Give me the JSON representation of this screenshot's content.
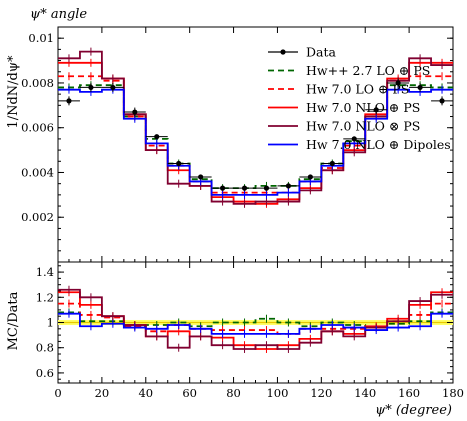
{
  "chart_data": {
    "type": "line",
    "title": "ψ* angle",
    "xlabel": "ψ* (degree)",
    "ylabel_main": "1/NdN/dψ*",
    "ylabel_ratio": "MC/Data",
    "x_range": [
      0,
      180
    ],
    "main_ylim": [
      0.0,
      0.0105
    ],
    "ratio_ylim": [
      0.52,
      1.48
    ],
    "x_ticks": [
      0,
      20,
      40,
      60,
      80,
      100,
      120,
      140,
      160,
      180
    ],
    "main_y_ticks": [
      0.002,
      0.004,
      0.006,
      0.008,
      0.01
    ],
    "main_y_tick_labels": [
      "0.002",
      "0.004",
      "0.006",
      "0.008",
      "0.01"
    ],
    "ratio_y_ticks": [
      0.6,
      0.8,
      1.0,
      1.2,
      1.4
    ],
    "ratio_y_tick_labels": [
      "0.6",
      "0.8",
      "1",
      "1.2",
      "1.4"
    ],
    "legend_position": "top-right",
    "bin_edges": [
      0,
      10,
      20,
      30,
      40,
      50,
      60,
      70,
      80,
      90,
      100,
      110,
      120,
      130,
      140,
      150,
      160,
      170,
      180
    ],
    "data": {
      "name": "Data",
      "color": "#000000",
      "values": [
        0.0072,
        0.0078,
        0.0078,
        0.0067,
        0.0056,
        0.0044,
        0.0038,
        0.0033,
        0.0033,
        0.0033,
        0.0034,
        0.0038,
        0.0044,
        0.0055,
        0.0068,
        0.008,
        0.0078,
        0.0072
      ],
      "errors": [
        0.0002,
        0.0002,
        0.0002,
        0.0002,
        0.0001,
        0.0001,
        0.0001,
        0.0001,
        0.0001,
        0.0001,
        0.0001,
        0.0001,
        0.0001,
        0.0001,
        0.0002,
        0.0002,
        0.0002,
        0.0002
      ]
    },
    "series": [
      {
        "name": "Hw++ 2.7 LO ⊕ PS",
        "color": "#006600",
        "dash": "6,4",
        "values": [
          0.0078,
          0.0079,
          0.0079,
          0.0065,
          0.0055,
          0.0044,
          0.0037,
          0.0033,
          0.0033,
          0.0034,
          0.0034,
          0.0037,
          0.0044,
          0.0054,
          0.0065,
          0.0079,
          0.0079,
          0.0078
        ],
        "ratio": [
          1.08,
          1.01,
          1.01,
          0.97,
          0.98,
          1.0,
          0.97,
          1.0,
          1.0,
          1.03,
          1.0,
          0.97,
          1.0,
          0.98,
          0.96,
          0.99,
          1.01,
          1.08
        ]
      },
      {
        "name": "Hw 7.0 LO ⊕ PS",
        "color": "#ff0000",
        "dash": "6,4",
        "values": [
          0.0083,
          0.0083,
          0.0081,
          0.0065,
          0.0052,
          0.0043,
          0.0036,
          0.0031,
          0.0031,
          0.0031,
          0.0031,
          0.0036,
          0.0042,
          0.0052,
          0.0065,
          0.0081,
          0.0083,
          0.0083
        ],
        "ratio": [
          1.15,
          1.06,
          1.04,
          0.97,
          0.93,
          0.98,
          0.95,
          0.94,
          0.94,
          0.94,
          0.91,
          0.95,
          0.95,
          0.95,
          0.96,
          1.01,
          1.06,
          1.15
        ]
      },
      {
        "name": "Hw 7.0 NLO ⊕ PS",
        "color": "#ff0000",
        "dash": "",
        "values": [
          0.0089,
          0.0089,
          0.0082,
          0.0066,
          0.005,
          0.0041,
          0.0034,
          0.0029,
          0.0027,
          0.0026,
          0.0028,
          0.0033,
          0.0041,
          0.005,
          0.0066,
          0.0082,
          0.0089,
          0.0089
        ],
        "ratio": [
          1.24,
          1.14,
          1.05,
          0.98,
          0.89,
          0.93,
          0.89,
          0.88,
          0.82,
          0.79,
          0.82,
          0.87,
          0.93,
          0.91,
          0.97,
          1.03,
          1.14,
          1.24
        ]
      },
      {
        "name": "Hw 7.0 NLO ⊗ PS",
        "color": "#800030",
        "dash": "",
        "values": [
          0.0091,
          0.0094,
          0.0082,
          0.0066,
          0.005,
          0.0035,
          0.0034,
          0.0027,
          0.0026,
          0.0027,
          0.0027,
          0.0032,
          0.0041,
          0.0049,
          0.0065,
          0.0081,
          0.0091,
          0.0088
        ],
        "ratio": [
          1.26,
          1.2,
          1.05,
          0.98,
          0.89,
          0.8,
          0.89,
          0.82,
          0.79,
          0.82,
          0.79,
          0.84,
          0.93,
          0.89,
          0.96,
          1.01,
          1.17,
          1.22
        ]
      },
      {
        "name": "Hw 7.0 NLO ⊕ Dipoles",
        "color": "#0000ff",
        "dash": "",
        "values": [
          0.0077,
          0.0076,
          0.0077,
          0.0064,
          0.0053,
          0.0043,
          0.0036,
          0.003,
          0.003,
          0.003,
          0.0031,
          0.0036,
          0.0043,
          0.0053,
          0.0064,
          0.0077,
          0.0076,
          0.0077
        ],
        "ratio": [
          1.07,
          0.97,
          0.99,
          0.96,
          0.95,
          0.98,
          0.95,
          0.91,
          0.91,
          0.91,
          0.91,
          0.95,
          0.98,
          0.96,
          0.94,
          0.96,
          0.97,
          1.07
        ]
      }
    ]
  }
}
